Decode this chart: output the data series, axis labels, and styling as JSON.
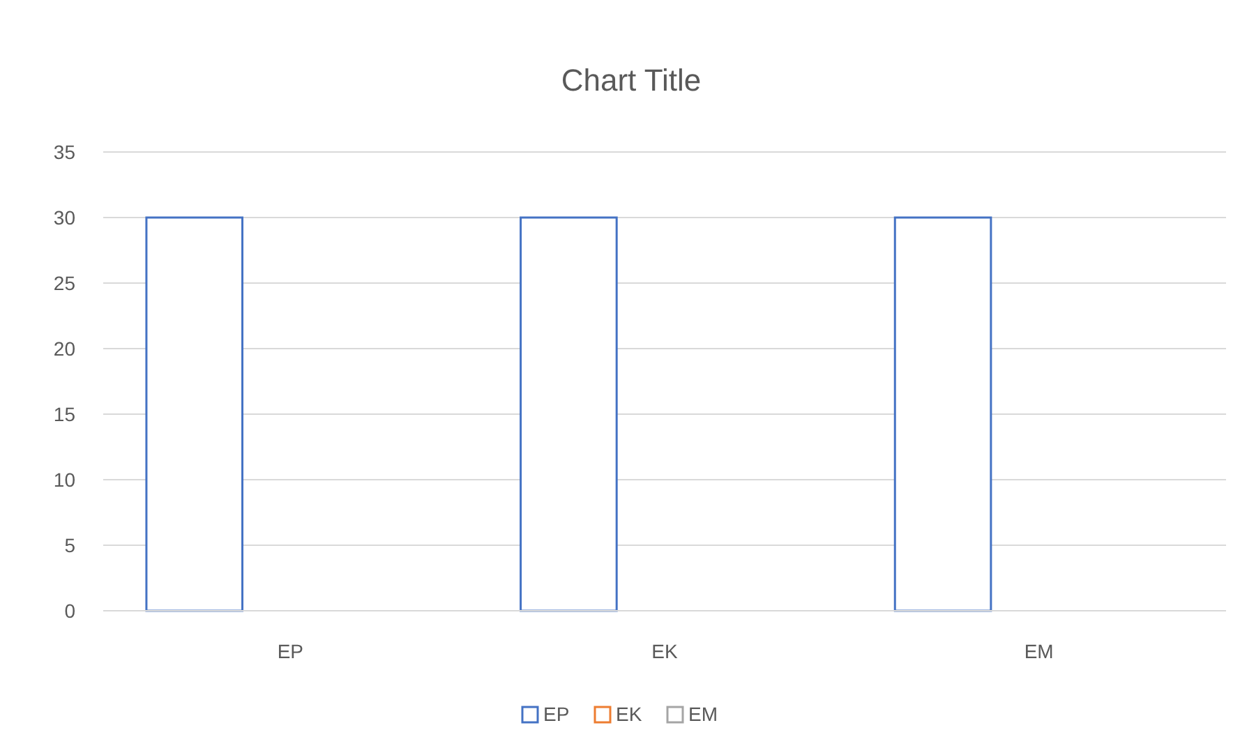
{
  "chart_data": {
    "type": "bar",
    "title": "Chart Title",
    "categories": [
      "EP",
      "EK",
      "EM"
    ],
    "series": [
      {
        "name": "EP",
        "color": "#4472c4",
        "values": [
          30,
          30,
          30
        ]
      },
      {
        "name": "EK",
        "color": "#ed7d31",
        "values": [
          0,
          0,
          0
        ]
      },
      {
        "name": "EM",
        "color": "#a5a5a5",
        "values": [
          0,
          0,
          0
        ]
      }
    ],
    "ylim": [
      0,
      35
    ],
    "yticks": [
      0,
      5,
      10,
      15,
      20,
      25,
      30,
      35
    ],
    "grid": "y",
    "legend": "bottom"
  }
}
